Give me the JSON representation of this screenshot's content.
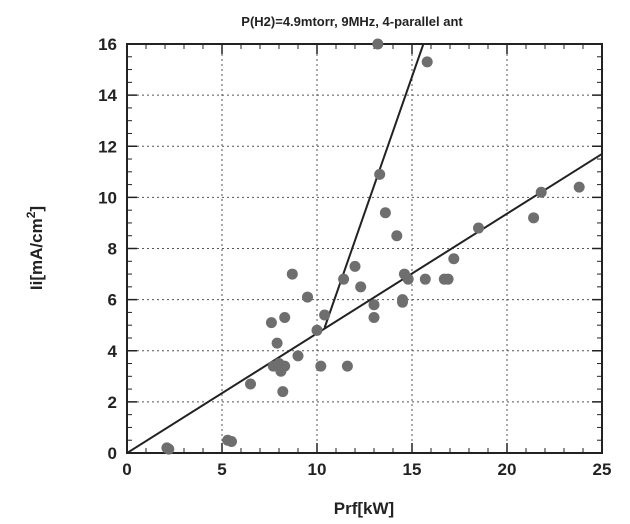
{
  "chart_data": {
    "type": "scatter",
    "title": "P(H2)=4.9mtorr, 9MHz, 4-parallel ant",
    "xlabel": "Prf[kW]",
    "ylabel_main": "Ii[mA/cm",
    "ylabel_sup": "2",
    "ylabel_close": "]",
    "xlim": [
      0,
      25
    ],
    "ylim": [
      0,
      16
    ],
    "xticks": [
      0,
      5,
      10,
      15,
      20,
      25
    ],
    "yticks": [
      0,
      2,
      4,
      6,
      8,
      10,
      12,
      14,
      16
    ],
    "grid": true,
    "grid_style": "dotted",
    "marker_color": "#6e6e6e",
    "line_color": "#222222",
    "series": [
      {
        "points": [
          [
            2.1,
            0.2
          ],
          [
            2.2,
            0.15
          ],
          [
            5.3,
            0.5
          ],
          [
            5.5,
            0.45
          ],
          [
            6.5,
            2.7
          ],
          [
            7.6,
            5.1
          ],
          [
            7.7,
            3.4
          ],
          [
            7.9,
            4.3
          ],
          [
            8.0,
            3.5
          ],
          [
            8.1,
            3.2
          ],
          [
            8.3,
            3.4
          ],
          [
            8.2,
            2.4
          ],
          [
            8.3,
            5.3
          ],
          [
            8.7,
            7.0
          ],
          [
            9.0,
            3.8
          ],
          [
            9.5,
            6.1
          ],
          [
            10.0,
            4.8
          ],
          [
            10.2,
            3.4
          ],
          [
            10.4,
            5.4
          ],
          [
            11.4,
            6.8
          ],
          [
            11.6,
            3.4
          ],
          [
            12.0,
            7.3
          ],
          [
            12.3,
            6.5
          ],
          [
            13.0,
            5.8
          ],
          [
            13.0,
            5.3
          ],
          [
            13.2,
            16.0
          ],
          [
            13.3,
            10.9
          ],
          [
            13.6,
            9.4
          ],
          [
            14.2,
            8.5
          ],
          [
            14.5,
            5.9
          ],
          [
            14.5,
            6.0
          ],
          [
            14.6,
            7.0
          ],
          [
            14.8,
            6.8
          ],
          [
            15.7,
            6.8
          ],
          [
            15.8,
            15.3
          ],
          [
            16.7,
            6.8
          ],
          [
            16.9,
            6.8
          ],
          [
            17.2,
            7.6
          ],
          [
            18.5,
            8.8
          ],
          [
            21.4,
            9.2
          ],
          [
            21.8,
            10.2
          ],
          [
            23.8,
            10.4
          ]
        ]
      }
    ],
    "fit_lines": [
      {
        "x": [
          0,
          25
        ],
        "y": [
          0.0,
          11.7
        ]
      },
      {
        "x": [
          10.4,
          15.6
        ],
        "y": [
          4.9,
          16.0
        ]
      }
    ]
  }
}
